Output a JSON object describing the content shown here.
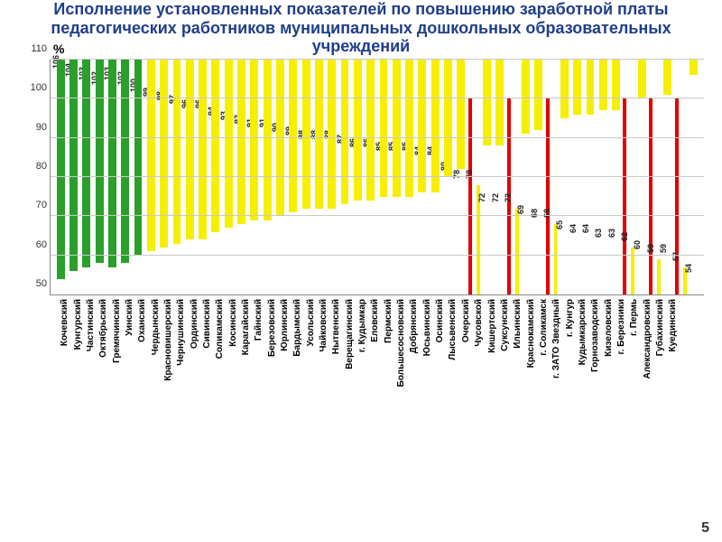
{
  "title": "Исполнение установленных показателей по повышению заработной платы педагогических работников муниципальных дошкольных образовательных учреждений",
  "title_color": "#1f3e8a",
  "title_fontsize": 18,
  "y_axis_label": "%",
  "page_number": "5",
  "chart": {
    "type": "bar",
    "ylim": [
      50,
      110
    ],
    "ytick_step": 10,
    "background_color": "#ffffff",
    "grid_color": "#c9c9c9",
    "bar_width": 0.62,
    "value_label_fontsize": 9,
    "x_label_fontsize": 10,
    "colors": {
      "green": "#2aa02a",
      "yellow": "#f6ef00",
      "red": "#e20000"
    },
    "bar_pairs_with_red": true,
    "red_value": 100,
    "items": [
      {
        "label": "Кочевский",
        "value": 106,
        "color": "green"
      },
      {
        "label": "Кунгурский",
        "value": 104,
        "color": "green"
      },
      {
        "label": "Частинский",
        "value": 103,
        "color": "green"
      },
      {
        "label": "Октябрьский",
        "value": 102,
        "color": "green"
      },
      {
        "label": "Гремячинский",
        "value": 103,
        "color": "green"
      },
      {
        "label": "Уинский",
        "value": 102,
        "color": "green"
      },
      {
        "label": "Оханский",
        "value": 100,
        "color": "green"
      },
      {
        "label": "Чердынский",
        "value": 99,
        "color": "yellow"
      },
      {
        "label": "Красновишерский",
        "value": 98,
        "color": "yellow"
      },
      {
        "label": "Чернушинский",
        "value": 97,
        "color": "yellow"
      },
      {
        "label": "Ординский",
        "value": 96,
        "color": "yellow"
      },
      {
        "label": "Сивинский",
        "value": 96,
        "color": "yellow"
      },
      {
        "label": "Соликамский",
        "value": 94,
        "color": "yellow"
      },
      {
        "label": "Косинский",
        "value": 93,
        "color": "yellow"
      },
      {
        "label": "Карагайский",
        "value": 92,
        "color": "yellow"
      },
      {
        "label": "Гайнский",
        "value": 91,
        "color": "yellow"
      },
      {
        "label": "Березовский",
        "value": 91,
        "color": "yellow"
      },
      {
        "label": "Юрлинский",
        "value": 90,
        "color": "yellow"
      },
      {
        "label": "Бардымский",
        "value": 89,
        "color": "yellow"
      },
      {
        "label": "Усольский",
        "value": 88,
        "color": "yellow"
      },
      {
        "label": "Чайковский",
        "value": 88,
        "color": "yellow"
      },
      {
        "label": "Нытвенский",
        "value": 88,
        "color": "yellow"
      },
      {
        "label": "Верещагинский",
        "value": 87,
        "color": "yellow"
      },
      {
        "label": "г. Кудымкар",
        "value": 86,
        "color": "yellow"
      },
      {
        "label": "Еловский",
        "value": 86,
        "color": "yellow"
      },
      {
        "label": "Пермский",
        "value": 85,
        "color": "yellow"
      },
      {
        "label": "Большесосновский",
        "value": 85,
        "color": "yellow"
      },
      {
        "label": "Добрянский",
        "value": 85,
        "color": "yellow"
      },
      {
        "label": "Юсьвинский",
        "value": 84,
        "color": "yellow"
      },
      {
        "label": "Осинский",
        "value": 84,
        "color": "yellow"
      },
      {
        "label": "Лысьвенский",
        "value": 80,
        "color": "yellow"
      },
      {
        "label": "Очерский",
        "value": 78,
        "color": "yellow"
      },
      {
        "label": "Чусовской",
        "value": 78,
        "color": "yellow",
        "with_red": true
      },
      {
        "label": "Кишертский",
        "value": 72,
        "color": "yellow"
      },
      {
        "label": "Суксунский",
        "value": 72,
        "color": "yellow"
      },
      {
        "label": "Ильинский",
        "value": 72,
        "color": "yellow",
        "with_red": true
      },
      {
        "label": "Краснокамский",
        "value": 69,
        "color": "yellow"
      },
      {
        "label": "г. Соликамск",
        "value": 68,
        "color": "yellow"
      },
      {
        "label": "г. ЗАТО Звездный",
        "value": 68,
        "color": "yellow",
        "with_red": true
      },
      {
        "label": "г. Кунгур",
        "value": 65,
        "color": "yellow"
      },
      {
        "label": "Кудымкарский",
        "value": 64,
        "color": "yellow"
      },
      {
        "label": "Горнозаводский",
        "value": 64,
        "color": "yellow"
      },
      {
        "label": "Кизеловский",
        "value": 63,
        "color": "yellow"
      },
      {
        "label": "г. Березники",
        "value": 63,
        "color": "yellow"
      },
      {
        "label": "г. Пермь",
        "value": 62,
        "color": "yellow",
        "with_red": true
      },
      {
        "label": "Александровский",
        "value": 60,
        "color": "yellow"
      },
      {
        "label": "Губахинский",
        "value": 59,
        "color": "yellow",
        "with_red": true
      },
      {
        "label": "Куединский",
        "value": 59,
        "color": "yellow"
      },
      {
        "label": "",
        "value": 57,
        "color": "yellow",
        "with_red": true
      },
      {
        "label": "",
        "value": 54,
        "color": "yellow"
      }
    ]
  }
}
